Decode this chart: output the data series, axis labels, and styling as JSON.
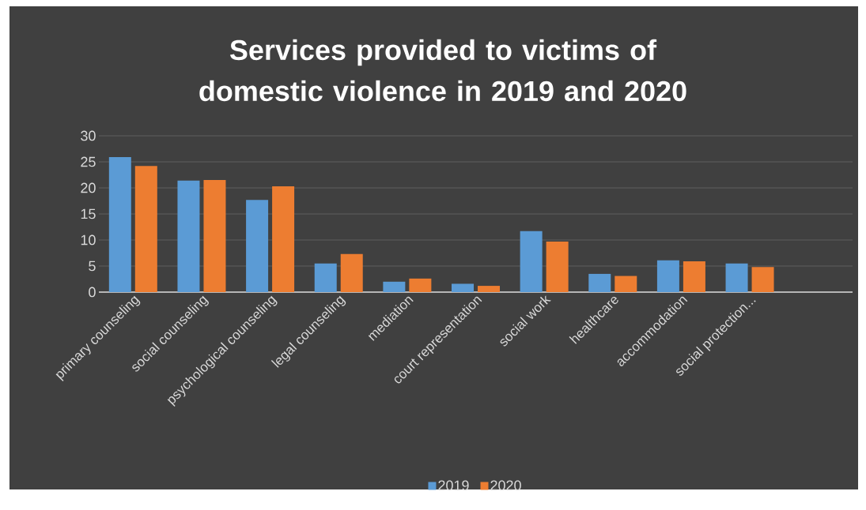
{
  "chart_data": {
    "type": "bar",
    "title": "Services provided to victims of domestic violence in 2019 and 2020",
    "categories": [
      "primary counseling",
      "social counseling",
      "psychological counseling",
      "legal counseling",
      "mediation",
      "court representation",
      "social work",
      "healthcare",
      "accommodation",
      "social protection...",
      null
    ],
    "series": [
      {
        "name": "2019",
        "color": "#5b9bd5",
        "values": [
          25.9,
          21.4,
          17.7,
          5.5,
          2.0,
          1.6,
          11.7,
          3.5,
          6.1,
          5.5,
          null
        ]
      },
      {
        "name": "2020",
        "color": "#ed7d31",
        "values": [
          24.2,
          21.5,
          20.3,
          7.3,
          2.6,
          1.2,
          9.7,
          3.1,
          5.9,
          4.8,
          null
        ]
      }
    ],
    "ylim": [
      0,
      30
    ],
    "yticks": [
      0,
      5,
      10,
      15,
      20,
      25,
      30
    ],
    "grid": "y",
    "legend": "bottom"
  }
}
